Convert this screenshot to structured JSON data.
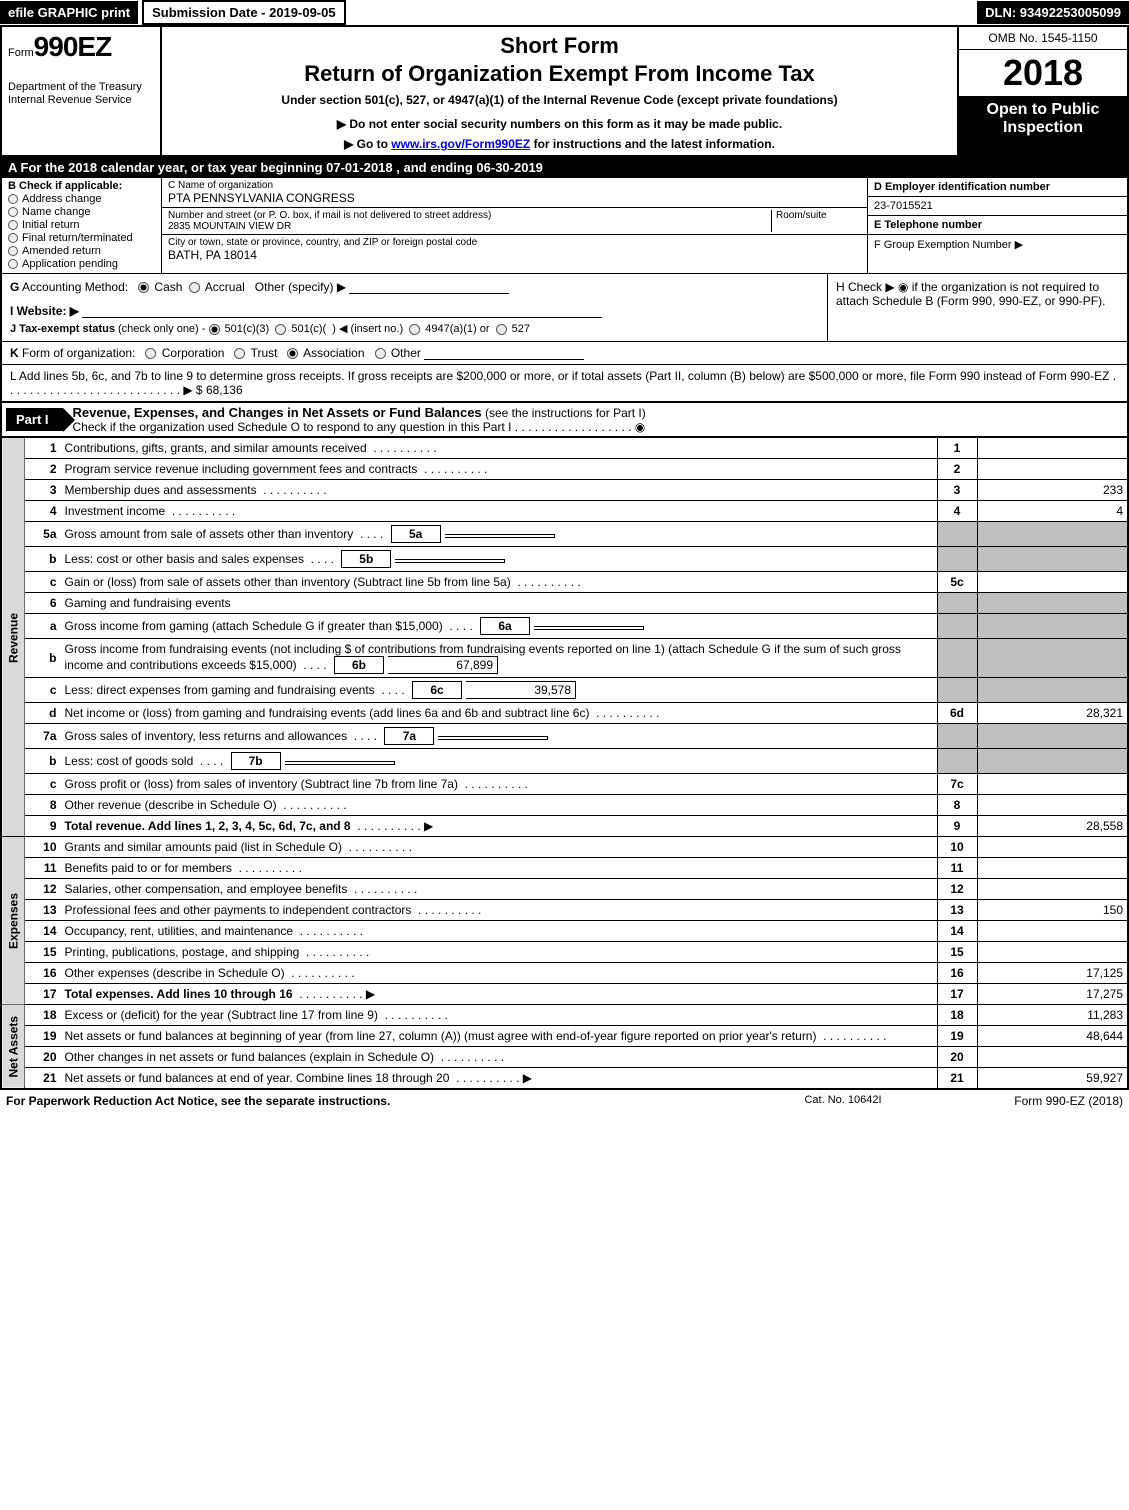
{
  "topbar": {
    "efile": "efile GRAPHIC print",
    "subdate": "Submission Date - 2019-09-05",
    "dln": "DLN: 93492253005099"
  },
  "header": {
    "form_prefix": "Form",
    "form_number": "990EZ",
    "dept1": "Department of the Treasury",
    "dept2": "Internal Revenue Service",
    "short": "Short Form",
    "title": "Return of Organization Exempt From Income Tax",
    "under": "Under section 501(c), 527, or 4947(a)(1) of the Internal Revenue Code (except private foundations)",
    "note": "▶ Do not enter social security numbers on this form as it may be made public.",
    "goto_pre": "▶ Go to ",
    "goto_link": "www.irs.gov/Form990EZ",
    "goto_post": " for instructions and the latest information.",
    "omb": "OMB No. 1545-1150",
    "year": "2018",
    "open": "Open to Public Inspection"
  },
  "rowA": "A  For the 2018 calendar year, or tax year beginning 07-01-2018           , and ending 06-30-2019",
  "colB": {
    "title": "B  Check if applicable:",
    "opts": [
      "Address change",
      "Name change",
      "Initial return",
      "Final return/terminated",
      "Amended return",
      "Application pending"
    ]
  },
  "colC": {
    "name_lbl": "C Name of organization",
    "name": "PTA PENNSYLVANIA CONGRESS",
    "addr_lbl": "Number and street (or P. O. box, if mail is not delivered to street address)",
    "room_lbl": "Room/suite",
    "street": "2835 MOUNTAIN VIEW DR",
    "city_lbl": "City or town, state or province, country, and ZIP or foreign postal code",
    "city": "BATH, PA  18014"
  },
  "colDEF": {
    "d_lbl": "D Employer identification number",
    "ein": "23-7015521",
    "e_lbl": "E Telephone number",
    "e_val": "",
    "f_lbl": "F Group Exemption Number  ▶"
  },
  "rowG": "G Accounting Method:   ◉ Cash  ○ Accrual   Other (specify) ▶",
  "rowH": "H   Check ▶  ◉  if the organization is not required to attach Schedule B (Form 990, 990-EZ, or 990-PF).",
  "rowI": "I Website: ▶",
  "rowJ": "J Tax-exempt status (check only one) -  ◉ 501(c)(3)  ○ 501(c)(  ) ◀ (insert no.)  ○ 4947(a)(1) or  ○ 527",
  "rowK": "K Form of organization:   ○ Corporation   ○ Trust   ◉ Association   ○ Other",
  "rowL": {
    "text": "L Add lines 5b, 6c, and 7b to line 9 to determine gross receipts. If gross receipts are $200,000 or more, or if total assets (Part II, column (B) below) are $500,000 or more, file Form 990 instead of Form 990-EZ  .  .  .  .  .  .  .  .  .  .  .  .  .  .  .  .  .  .  .  .  .  .  .  .  .  .  .  ▶ $ ",
    "amount": "68,136"
  },
  "part1": {
    "tab": "Part I",
    "title": "Revenue, Expenses, and Changes in Net Assets or Fund Balances",
    "sub": " (see the instructions for Part I)",
    "check": "Check if the organization used Schedule O to respond to any question in this Part I  .  .  .  .  .  .  .  .  .  .  .  .  .  .  .  .  .  .  ◉"
  },
  "sections": {
    "revenue": "Revenue",
    "expenses": "Expenses",
    "netassets": "Net Assets"
  },
  "lines": [
    {
      "n": "1",
      "t": "Contributions, gifts, grants, and similar amounts received",
      "idx": "1",
      "v": "",
      "sec": "rev"
    },
    {
      "n": "2",
      "t": "Program service revenue including government fees and contracts",
      "idx": "2",
      "v": "",
      "sec": "rev"
    },
    {
      "n": "3",
      "t": "Membership dues and assessments",
      "idx": "3",
      "v": "233",
      "sec": "rev"
    },
    {
      "n": "4",
      "t": "Investment income",
      "idx": "4",
      "v": "4",
      "sec": "rev"
    },
    {
      "n": "5a",
      "t": "Gross amount from sale of assets other than inventory",
      "box": "5a",
      "boxv": "",
      "sec": "rev",
      "grey": true
    },
    {
      "n": "b",
      "t": "Less: cost or other basis and sales expenses",
      "box": "5b",
      "boxv": "",
      "sec": "rev",
      "grey": true
    },
    {
      "n": "c",
      "t": "Gain or (loss) from sale of assets other than inventory (Subtract line 5b from line 5a)",
      "idx": "5c",
      "v": "",
      "sec": "rev"
    },
    {
      "n": "6",
      "t": "Gaming and fundraising events",
      "sec": "rev",
      "grey": true,
      "noval": true
    },
    {
      "n": "a",
      "t": "Gross income from gaming (attach Schedule G if greater than $15,000)",
      "box": "6a",
      "boxv": "",
      "sec": "rev",
      "grey": true
    },
    {
      "n": "b",
      "t": "Gross income from fundraising events (not including $              of contributions from fundraising events reported on line 1) (attach Schedule G if the sum of such gross income and contributions exceeds $15,000)",
      "box": "6b",
      "boxv": "67,899",
      "sec": "rev",
      "grey": true
    },
    {
      "n": "c",
      "t": "Less: direct expenses from gaming and fundraising events",
      "box": "6c",
      "boxv": "39,578",
      "sec": "rev",
      "grey": true
    },
    {
      "n": "d",
      "t": "Net income or (loss) from gaming and fundraising events (add lines 6a and 6b and subtract line 6c)",
      "idx": "6d",
      "v": "28,321",
      "sec": "rev"
    },
    {
      "n": "7a",
      "t": "Gross sales of inventory, less returns and allowances",
      "box": "7a",
      "boxv": "",
      "sec": "rev",
      "grey": true
    },
    {
      "n": "b",
      "t": "Less: cost of goods sold",
      "box": "7b",
      "boxv": "",
      "sec": "rev",
      "grey": true
    },
    {
      "n": "c",
      "t": "Gross profit or (loss) from sales of inventory (Subtract line 7b from line 7a)",
      "idx": "7c",
      "v": "",
      "sec": "rev"
    },
    {
      "n": "8",
      "t": "Other revenue (describe in Schedule O)",
      "idx": "8",
      "v": "",
      "sec": "rev"
    },
    {
      "n": "9",
      "t": "Total revenue. Add lines 1, 2, 3, 4, 5c, 6d, 7c, and 8",
      "idx": "9",
      "v": "28,558",
      "sec": "rev",
      "bold": true,
      "arrow": true
    },
    {
      "n": "10",
      "t": "Grants and similar amounts paid (list in Schedule O)",
      "idx": "10",
      "v": "",
      "sec": "exp"
    },
    {
      "n": "11",
      "t": "Benefits paid to or for members",
      "idx": "11",
      "v": "",
      "sec": "exp"
    },
    {
      "n": "12",
      "t": "Salaries, other compensation, and employee benefits",
      "idx": "12",
      "v": "",
      "sec": "exp"
    },
    {
      "n": "13",
      "t": "Professional fees and other payments to independent contractors",
      "idx": "13",
      "v": "150",
      "sec": "exp"
    },
    {
      "n": "14",
      "t": "Occupancy, rent, utilities, and maintenance",
      "idx": "14",
      "v": "",
      "sec": "exp"
    },
    {
      "n": "15",
      "t": "Printing, publications, postage, and shipping",
      "idx": "15",
      "v": "",
      "sec": "exp"
    },
    {
      "n": "16",
      "t": "Other expenses (describe in Schedule O)",
      "idx": "16",
      "v": "17,125",
      "sec": "exp"
    },
    {
      "n": "17",
      "t": "Total expenses. Add lines 10 through 16",
      "idx": "17",
      "v": "17,275",
      "sec": "exp",
      "bold": true,
      "arrow": true
    },
    {
      "n": "18",
      "t": "Excess or (deficit) for the year (Subtract line 17 from line 9)",
      "idx": "18",
      "v": "11,283",
      "sec": "net"
    },
    {
      "n": "19",
      "t": "Net assets or fund balances at beginning of year (from line 27, column (A)) (must agree with end-of-year figure reported on prior year's return)",
      "idx": "19",
      "v": "48,644",
      "sec": "net"
    },
    {
      "n": "20",
      "t": "Other changes in net assets or fund balances (explain in Schedule O)",
      "idx": "20",
      "v": "",
      "sec": "net"
    },
    {
      "n": "21",
      "t": "Net assets or fund balances at end of year. Combine lines 18 through 20",
      "idx": "21",
      "v": "59,927",
      "sec": "net",
      "arrow": true
    }
  ],
  "footer": {
    "left": "For Paperwork Reduction Act Notice, see the separate instructions.",
    "mid": "Cat. No. 10642I",
    "right": "Form 990-EZ (2018)"
  },
  "colors": {
    "black": "#000000",
    "grey_side": "#d9d9d9",
    "grey_cell": "#bfbfbf",
    "link": "#0000ee"
  }
}
